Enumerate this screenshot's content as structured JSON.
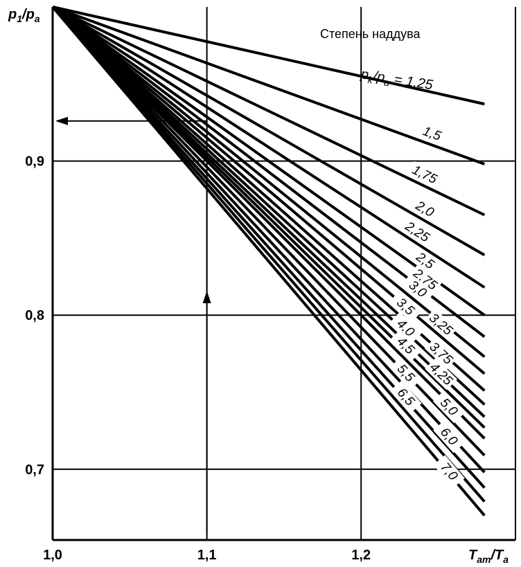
{
  "chart_data": {
    "type": "line",
    "title": "Степень наддува",
    "legend_head": {
      "p": "p",
      "k": "k",
      "slash": "/",
      "a_p": "p",
      "a": "a",
      "eq": "= 1,25"
    },
    "ylabel": {
      "p": "p",
      "one": "1",
      "slash": "/",
      "p2": "p",
      "a": "a"
    },
    "xlabel": {
      "T": "T",
      "am": "am",
      "slash": "/",
      "T2": "T",
      "a": "a"
    },
    "xlim": [
      1.0,
      1.29
    ],
    "ylim": [
      0.658,
      1.0
    ],
    "x_ticks": [
      {
        "value": 1.0,
        "label": "1,0"
      },
      {
        "value": 1.1,
        "label": "1,1"
      },
      {
        "value": 1.2,
        "label": "1,2"
      }
    ],
    "y_ticks": [
      {
        "value": 0.9,
        "label": "0,9"
      },
      {
        "value": 0.8,
        "label": "0,8"
      },
      {
        "value": 0.7,
        "label": "0,7"
      }
    ],
    "grid": true,
    "series": [
      {
        "name": "1,25",
        "x": [
          1.0,
          1.28
        ],
        "y": [
          1.0,
          0.937
        ]
      },
      {
        "name": "1,5",
        "x": [
          1.0,
          1.28
        ],
        "y": [
          1.0,
          0.898
        ]
      },
      {
        "name": "1,75",
        "x": [
          1.0,
          1.28
        ],
        "y": [
          1.0,
          0.865
        ]
      },
      {
        "name": "2,0",
        "x": [
          1.0,
          1.28
        ],
        "y": [
          1.0,
          0.839
        ]
      },
      {
        "name": "2,25",
        "x": [
          1.0,
          1.28
        ],
        "y": [
          1.0,
          0.818
        ]
      },
      {
        "name": "2,5",
        "x": [
          1.0,
          1.28
        ],
        "y": [
          1.0,
          0.8
        ]
      },
      {
        "name": "2,75",
        "x": [
          1.0,
          1.28
        ],
        "y": [
          1.0,
          0.786
        ]
      },
      {
        "name": "3,0",
        "x": [
          1.0,
          1.28
        ],
        "y": [
          1.0,
          0.773
        ]
      },
      {
        "name": "3,25",
        "x": [
          1.0,
          1.28
        ],
        "y": [
          1.0,
          0.762
        ]
      },
      {
        "name": "3,5",
        "x": [
          1.0,
          1.28
        ],
        "y": [
          1.0,
          0.751
        ]
      },
      {
        "name": "3,75",
        "x": [
          1.0,
          1.28
        ],
        "y": [
          1.0,
          0.742
        ]
      },
      {
        "name": "4,0",
        "x": [
          1.0,
          1.28
        ],
        "y": [
          1.0,
          0.734
        ]
      },
      {
        "name": "4,25",
        "x": [
          1.0,
          1.28
        ],
        "y": [
          1.0,
          0.727
        ]
      },
      {
        "name": "4,5",
        "x": [
          1.0,
          1.28
        ],
        "y": [
          1.0,
          0.72
        ]
      },
      {
        "name": "5,0",
        "x": [
          1.0,
          1.28
        ],
        "y": [
          1.0,
          0.709
        ]
      },
      {
        "name": "5,5",
        "x": [
          1.0,
          1.28
        ],
        "y": [
          1.0,
          0.698
        ]
      },
      {
        "name": "6,0",
        "x": [
          1.0,
          1.28
        ],
        "y": [
          1.0,
          0.688
        ]
      },
      {
        "name": "6,5",
        "x": [
          1.0,
          1.28
        ],
        "y": [
          1.0,
          0.679
        ]
      },
      {
        "name": "7,0",
        "x": [
          1.0,
          1.28
        ],
        "y": [
          1.0,
          0.67
        ]
      }
    ],
    "example_path": {
      "x": [
        1.1,
        1.1,
        1.0
      ],
      "y": [
        0.658,
        0.926,
        0.926
      ]
    }
  }
}
